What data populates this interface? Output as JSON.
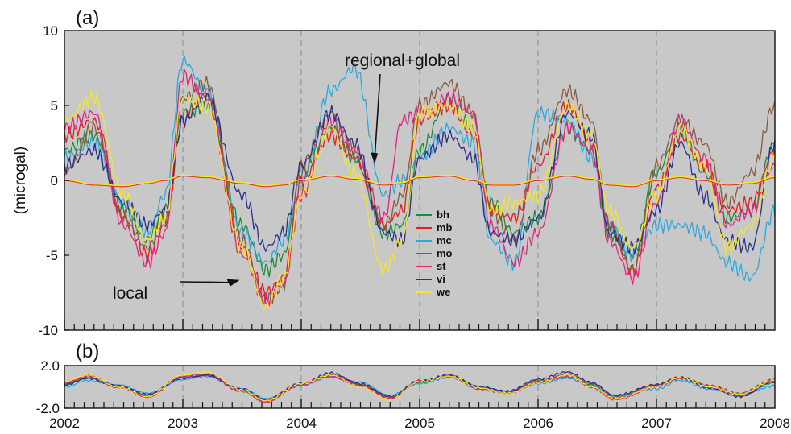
{
  "chart_data": [
    {
      "panel_label": "(a)",
      "type": "line",
      "ylabel": "(microgal)",
      "xlim": [
        2002,
        2008
      ],
      "ylim": [
        -10,
        10
      ],
      "yticks": [
        "10",
        "5",
        "0",
        "-5",
        "-10"
      ],
      "ytick_values": [
        10,
        5,
        0,
        -5,
        -10
      ],
      "xticks": [
        "2002",
        "2003",
        "2004",
        "2005",
        "2006",
        "2007",
        "2008"
      ],
      "xtick_values": [
        2002,
        2003,
        2004,
        2005,
        2006,
        2007,
        2008
      ],
      "background": "#c8c8c8",
      "grid": "dashed vertical at years",
      "legend_position": "center",
      "annotations": [
        {
          "text": "regional+global",
          "arrow_to": [
            2004.62,
            1.0
          ]
        },
        {
          "text": "local",
          "arrow_to": [
            2003.48,
            -6.6
          ]
        }
      ],
      "x": [
        2002.0,
        2002.25,
        2002.5,
        2002.7,
        2002.85,
        2003.0,
        2003.2,
        2003.5,
        2003.7,
        2003.85,
        2004.0,
        2004.25,
        2004.45,
        2004.7,
        2004.85,
        2005.0,
        2005.25,
        2005.45,
        2005.6,
        2005.8,
        2006.0,
        2006.25,
        2006.45,
        2006.6,
        2006.8,
        2007.0,
        2007.2,
        2007.4,
        2007.6,
        2007.8,
        2008.0
      ],
      "series": [
        {
          "name": "bh",
          "color": "#1e8a3c",
          "values": [
            2.0,
            3.0,
            -2.0,
            -4.0,
            -2.0,
            4.5,
            5.0,
            -3.0,
            -6.0,
            -5.0,
            0.5,
            3.5,
            1.5,
            -3.5,
            -3.0,
            2.0,
            5.5,
            3.5,
            -1.5,
            -3.5,
            -2.5,
            3.5,
            2.0,
            -3.5,
            -5.0,
            0.5,
            3.5,
            0.5,
            -2.5,
            -2.0,
            2.5
          ]
        },
        {
          "name": "mb",
          "color": "#e0211c",
          "values": [
            3.0,
            4.0,
            -2.5,
            -5.0,
            -3.0,
            4.0,
            6.0,
            -4.5,
            -7.5,
            -6.5,
            0.0,
            3.0,
            1.5,
            -3.0,
            -2.0,
            4.0,
            5.0,
            3.0,
            -2.0,
            -2.5,
            1.0,
            5.0,
            2.5,
            -3.0,
            -6.0,
            -0.5,
            3.0,
            1.0,
            -2.0,
            -1.5,
            2.0
          ]
        },
        {
          "name": "mc",
          "color": "#29a9e0",
          "values": [
            1.5,
            2.5,
            -1.5,
            -3.5,
            -1.0,
            8.0,
            6.0,
            -3.5,
            -5.5,
            -4.0,
            0.0,
            6.0,
            7.5,
            -1.0,
            0.0,
            1.5,
            3.5,
            2.5,
            -4.0,
            -5.5,
            4.5,
            4.0,
            1.5,
            -3.0,
            -5.0,
            -3.0,
            -3.0,
            -3.5,
            -5.5,
            -6.5,
            -2.0
          ]
        },
        {
          "name": "mo",
          "color": "#8b5a3c",
          "values": [
            0.5,
            3.5,
            -2.5,
            -4.5,
            -2.5,
            5.5,
            6.5,
            -4.0,
            -8.0,
            -7.0,
            1.0,
            4.5,
            2.0,
            -3.0,
            -1.0,
            5.0,
            6.5,
            4.5,
            -2.0,
            -4.0,
            2.0,
            6.0,
            4.0,
            -3.0,
            -6.0,
            1.0,
            4.0,
            2.5,
            -1.5,
            0.5,
            5.0
          ]
        },
        {
          "name": "st",
          "color": "#e6237d",
          "values": [
            3.5,
            4.5,
            -3.0,
            -5.5,
            -3.5,
            7.0,
            5.5,
            -5.0,
            -8.0,
            -7.0,
            -1.0,
            4.0,
            2.0,
            -2.5,
            4.0,
            4.5,
            5.5,
            4.5,
            -3.0,
            -5.5,
            -3.5,
            3.5,
            2.0,
            -4.0,
            -6.5,
            -1.5,
            4.0,
            1.5,
            -3.0,
            -2.0,
            1.0
          ]
        },
        {
          "name": "vi",
          "color": "#2b2f8e",
          "values": [
            1.0,
            2.0,
            -1.5,
            -3.0,
            -2.0,
            4.0,
            5.5,
            -1.0,
            -4.5,
            -3.5,
            1.0,
            4.5,
            2.5,
            -3.5,
            -4.0,
            1.5,
            3.0,
            1.5,
            -3.5,
            -4.0,
            -2.5,
            4.5,
            3.0,
            -3.5,
            -4.5,
            -2.0,
            2.5,
            -1.0,
            -4.0,
            -4.5,
            2.5
          ]
        },
        {
          "name": "we",
          "color": "#f5e62a",
          "values": [
            4.0,
            5.5,
            -1.0,
            -4.0,
            -2.5,
            5.5,
            5.0,
            -4.5,
            -8.5,
            -6.5,
            -1.0,
            3.5,
            0.5,
            -6.0,
            -4.0,
            4.5,
            5.0,
            3.5,
            -2.0,
            -1.5,
            -1.0,
            5.0,
            3.0,
            -2.0,
            -4.5,
            -1.0,
            3.5,
            1.0,
            -4.5,
            -3.0,
            1.5
          ]
        },
        {
          "name": "",
          "color": "#e0211c",
          "values": [
            0.0,
            -0.3,
            -0.4,
            -0.2,
            0.0,
            0.3,
            0.2,
            -0.2,
            -0.4,
            -0.3,
            0.0,
            0.3,
            0.1,
            -0.3,
            -0.2,
            0.2,
            0.3,
            0.0,
            -0.3,
            -0.3,
            0.0,
            0.3,
            0.1,
            -0.3,
            -0.4,
            0.0,
            0.2,
            0.0,
            -0.3,
            -0.2,
            0.2
          ]
        },
        {
          "name": "",
          "color": "#f5e62a",
          "values": [
            0.05,
            -0.25,
            -0.35,
            -0.15,
            0.05,
            0.35,
            0.25,
            -0.15,
            -0.35,
            -0.25,
            0.05,
            0.35,
            0.15,
            -0.25,
            -0.15,
            0.25,
            0.35,
            0.05,
            -0.25,
            -0.25,
            0.05,
            0.35,
            0.15,
            -0.25,
            -0.35,
            0.05,
            0.25,
            0.05,
            -0.25,
            -0.15,
            0.25
          ]
        }
      ]
    },
    {
      "panel_label": "(b)",
      "type": "line",
      "xlim": [
        2002,
        2008
      ],
      "ylim": [
        -2.0,
        2.0
      ],
      "yticks": [
        "2.0",
        "-2.0"
      ],
      "ytick_values": [
        2.0,
        -2.0
      ],
      "xticks": [
        "2002",
        "2003",
        "2004",
        "2005",
        "2006",
        "2007",
        "2008"
      ],
      "xtick_values": [
        2002,
        2003,
        2004,
        2005,
        2006,
        2007,
        2008
      ],
      "background": "#c8c8c8",
      "grid": "dashed vertical at years",
      "x": [
        2002.0,
        2002.2,
        2002.45,
        2002.7,
        2003.0,
        2003.2,
        2003.5,
        2003.7,
        2004.0,
        2004.25,
        2004.5,
        2004.75,
        2005.0,
        2005.25,
        2005.5,
        2005.75,
        2006.0,
        2006.25,
        2006.45,
        2006.65,
        2007.0,
        2007.2,
        2007.45,
        2007.7,
        2008.0
      ],
      "series": [
        {
          "name": "bh",
          "color": "#1e8a3c",
          "values": [
            0.2,
            0.9,
            0.0,
            -0.8,
            0.9,
            1.1,
            -0.4,
            -1.3,
            0.2,
            1.1,
            0.2,
            -1.0,
            0.4,
            1.0,
            -0.2,
            -0.6,
            0.5,
            1.0,
            0.2,
            -1.0,
            0.0,
            0.8,
            0.0,
            -0.7,
            0.4
          ]
        },
        {
          "name": "mb",
          "color": "#e0211c",
          "values": [
            0.4,
            1.0,
            0.0,
            -0.9,
            1.0,
            1.2,
            -0.3,
            -1.4,
            0.3,
            1.0,
            0.1,
            -1.1,
            0.6,
            1.0,
            -0.1,
            -0.5,
            0.5,
            1.0,
            0.0,
            -1.1,
            0.1,
            0.9,
            0.1,
            -0.8,
            0.6
          ]
        },
        {
          "name": "mc",
          "color": "#29a9e0",
          "values": [
            0.0,
            0.6,
            0.2,
            -0.6,
            0.7,
            1.0,
            -0.2,
            -1.1,
            0.1,
            1.0,
            0.4,
            -0.8,
            0.3,
            0.9,
            0.0,
            -0.5,
            0.3,
            0.8,
            0.1,
            -0.9,
            -0.2,
            0.6,
            -0.2,
            -0.8,
            0.1
          ]
        },
        {
          "name": "mo",
          "color": "#8b5a3c",
          "values": [
            0.3,
            1.0,
            0.1,
            -0.8,
            1.0,
            1.2,
            -0.3,
            -1.2,
            0.3,
            1.1,
            0.2,
            -1.0,
            0.5,
            1.1,
            0.0,
            -0.5,
            0.5,
            1.2,
            0.3,
            -0.9,
            0.2,
            0.9,
            0.1,
            -0.6,
            0.7
          ]
        },
        {
          "name": "st",
          "color": "#e6237d",
          "values": [
            0.4,
            1.0,
            0.0,
            -0.9,
            0.9,
            1.1,
            -0.4,
            -1.4,
            0.2,
            1.0,
            0.1,
            -1.1,
            0.5,
            1.0,
            -0.2,
            -0.6,
            0.4,
            1.0,
            0.0,
            -1.2,
            0.0,
            0.8,
            0.0,
            -0.8,
            0.5
          ]
        },
        {
          "name": "vi",
          "color": "#2b2f8e",
          "values": [
            0.2,
            0.8,
            0.1,
            -0.7,
            0.8,
            1.1,
            -0.2,
            -1.2,
            0.3,
            1.3,
            0.3,
            -0.9,
            0.5,
            1.1,
            0.0,
            -0.4,
            0.7,
            1.4,
            0.4,
            -0.8,
            0.2,
            0.9,
            -0.1,
            -0.9,
            0.5
          ]
        },
        {
          "name": "we",
          "color": "#f5e62a",
          "values": [
            0.5,
            1.1,
            0.0,
            -0.9,
            1.1,
            1.4,
            -0.3,
            -1.3,
            0.3,
            1.1,
            0.0,
            -1.2,
            0.5,
            1.0,
            -0.1,
            -0.6,
            0.4,
            1.1,
            0.0,
            -1.1,
            0.0,
            0.9,
            0.0,
            -0.7,
            0.6
          ]
        }
      ]
    }
  ]
}
